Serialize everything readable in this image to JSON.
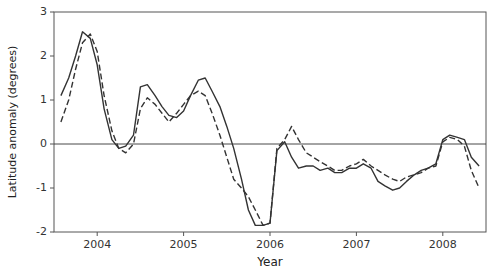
{
  "chart_data": {
    "type": "line",
    "xlabel": "Year",
    "ylabel": "Latitude anomaly (degrees)",
    "xlim": [
      2003.5,
      2008.5
    ],
    "ylim": [
      -2.0,
      3.0
    ],
    "xticks": [
      2004,
      2005,
      2006,
      2007,
      2008
    ],
    "yticks": [
      -2.0,
      -1.0,
      0.0,
      1.0,
      2.0,
      3.0
    ],
    "grid": false,
    "hline": 0.0,
    "x": [
      2003.58,
      2003.67,
      2003.75,
      2003.83,
      2003.92,
      2004.0,
      2004.08,
      2004.17,
      2004.25,
      2004.33,
      2004.42,
      2004.5,
      2004.58,
      2004.67,
      2004.75,
      2004.83,
      2004.92,
      2005.0,
      2005.08,
      2005.17,
      2005.25,
      2005.33,
      2005.42,
      2005.5,
      2005.58,
      2005.67,
      2005.75,
      2005.83,
      2005.92,
      2006.0,
      2006.08,
      2006.17,
      2006.25,
      2006.33,
      2006.42,
      2006.5,
      2006.58,
      2006.67,
      2006.75,
      2006.83,
      2006.92,
      2007.0,
      2007.08,
      2007.17,
      2007.25,
      2007.33,
      2007.42,
      2007.5,
      2007.58,
      2007.67,
      2007.75,
      2007.83,
      2007.92,
      2008.0,
      2008.08,
      2008.17,
      2008.25,
      2008.33,
      2008.42
    ],
    "series": [
      {
        "color": "#333333",
        "line_style": "solid",
        "values": [
          1.1,
          1.5,
          2.0,
          2.55,
          2.4,
          1.8,
          0.8,
          0.1,
          -0.1,
          -0.05,
          0.2,
          1.3,
          1.35,
          1.1,
          0.85,
          0.65,
          0.6,
          0.75,
          1.1,
          1.45,
          1.5,
          1.2,
          0.85,
          0.4,
          -0.1,
          -0.8,
          -1.5,
          -1.85,
          -1.85,
          -1.8,
          -0.15,
          0.05,
          -0.3,
          -0.55,
          -0.5,
          -0.5,
          -0.6,
          -0.55,
          -0.65,
          -0.65,
          -0.55,
          -0.55,
          -0.45,
          -0.55,
          -0.85,
          -0.95,
          -1.05,
          -1.0,
          -0.85,
          -0.7,
          -0.6,
          -0.55,
          -0.45,
          0.1,
          0.2,
          0.15,
          0.1,
          -0.3,
          -0.5
        ]
      },
      {
        "color": "#333333",
        "line_style": "dashed",
        "values": [
          0.5,
          1.0,
          1.7,
          2.3,
          2.5,
          2.1,
          1.1,
          0.3,
          -0.1,
          -0.2,
          0.0,
          0.8,
          1.05,
          0.9,
          0.7,
          0.5,
          0.7,
          0.9,
          1.1,
          1.2,
          1.1,
          0.7,
          0.2,
          -0.3,
          -0.8,
          -1.0,
          -1.2,
          -1.5,
          -1.85,
          -1.8,
          -0.1,
          0.1,
          0.4,
          0.1,
          -0.2,
          -0.3,
          -0.4,
          -0.5,
          -0.6,
          -0.6,
          -0.5,
          -0.45,
          -0.35,
          -0.5,
          -0.6,
          -0.7,
          -0.8,
          -0.85,
          -0.75,
          -0.7,
          -0.65,
          -0.55,
          -0.5,
          0.05,
          0.15,
          0.1,
          -0.05,
          -0.6,
          -1.0
        ]
      }
    ]
  }
}
